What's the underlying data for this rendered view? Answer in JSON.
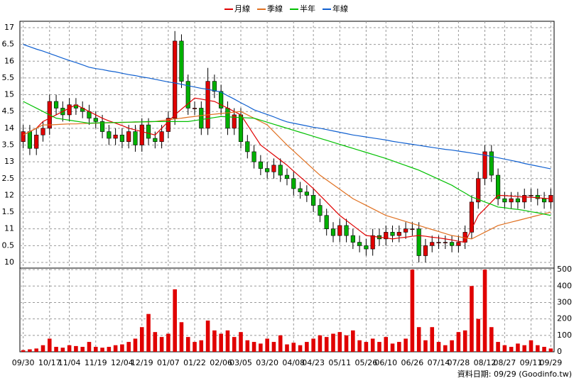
{
  "chart_data": {
    "type": "candlestick",
    "categories": [
      "09/30",
      null,
      null,
      null,
      "10/17",
      null,
      null,
      "11/04",
      null,
      null,
      null,
      "11/19",
      null,
      null,
      null,
      "12/04",
      null,
      null,
      "12/19",
      null,
      null,
      null,
      "01/07",
      null,
      null,
      null,
      "01/22",
      null,
      null,
      null,
      "02/06",
      null,
      null,
      "03/05",
      null,
      null,
      null,
      "03/20",
      null,
      null,
      null,
      "04/08",
      null,
      null,
      "04/23",
      null,
      null,
      null,
      "05/11",
      null,
      null,
      null,
      "05/26",
      null,
      null,
      "06/10",
      null,
      null,
      null,
      "06/26",
      null,
      null,
      null,
      "07/14",
      null,
      null,
      "07/28",
      null,
      null,
      null,
      "08/12",
      null,
      null,
      "08/27",
      null,
      null,
      null,
      "09/11",
      null,
      null,
      "09/29"
    ],
    "open": [
      13.6,
      13.9,
      13.4,
      13.8,
      14.0,
      14.8,
      14.6,
      14.4,
      14.7,
      14.6,
      14.5,
      14.3,
      14.2,
      13.9,
      13.7,
      13.8,
      13.6,
      13.9,
      13.5,
      14.1,
      13.7,
      13.6,
      13.9,
      14.3,
      16.6,
      15.4,
      14.6,
      14.6,
      14.0,
      15.4,
      15.1,
      14.6,
      14.0,
      14.4,
      13.6,
      13.3,
      13.0,
      12.8,
      12.7,
      12.9,
      12.6,
      12.5,
      12.2,
      12.1,
      12.0,
      11.7,
      11.4,
      11.0,
      10.8,
      11.1,
      10.8,
      10.6,
      10.5,
      10.4,
      10.8,
      10.7,
      10.9,
      10.8,
      10.9,
      11.0,
      11.0,
      10.2,
      10.5,
      10.6,
      10.6,
      10.6,
      10.5,
      10.6,
      10.9,
      11.8,
      12.5,
      13.3,
      12.6,
      11.9,
      11.8,
      11.9,
      11.8,
      12.0,
      12.0,
      11.9,
      11.8
    ],
    "high": [
      14.1,
      14.1,
      14.0,
      14.2,
      15.0,
      15.0,
      14.8,
      14.9,
      14.9,
      14.8,
      14.7,
      14.5,
      14.4,
      14.1,
      14.0,
      14.0,
      14.1,
      14.1,
      14.3,
      14.3,
      13.9,
      14.1,
      14.5,
      16.9,
      16.8,
      15.6,
      14.8,
      14.8,
      15.8,
      15.6,
      15.3,
      14.8,
      14.6,
      14.6,
      13.8,
      13.5,
      13.2,
      13.0,
      13.1,
      13.1,
      12.8,
      12.7,
      12.4,
      12.3,
      12.2,
      11.9,
      11.6,
      11.2,
      11.3,
      11.3,
      11.0,
      10.8,
      10.7,
      11.0,
      11.0,
      11.1,
      11.1,
      11.1,
      11.2,
      11.2,
      11.2,
      10.7,
      10.8,
      10.8,
      10.8,
      10.8,
      10.8,
      11.1,
      12.0,
      12.7,
      13.5,
      13.5,
      12.8,
      12.1,
      12.1,
      12.1,
      12.2,
      12.2,
      12.2,
      12.1,
      12.2
    ],
    "low": [
      13.4,
      13.2,
      13.2,
      13.6,
      13.8,
      14.4,
      14.2,
      14.2,
      14.4,
      14.3,
      14.1,
      14.0,
      13.7,
      13.5,
      13.5,
      13.4,
      13.4,
      13.3,
      13.3,
      13.5,
      13.4,
      13.4,
      13.7,
      14.1,
      15.2,
      14.4,
      14.4,
      13.8,
      13.8,
      14.9,
      14.4,
      13.8,
      13.8,
      13.4,
      13.1,
      12.8,
      12.6,
      12.5,
      12.5,
      12.4,
      12.3,
      12.0,
      11.9,
      11.8,
      11.5,
      11.2,
      10.8,
      10.6,
      10.6,
      10.6,
      10.4,
      10.3,
      10.2,
      10.2,
      10.5,
      10.5,
      10.6,
      10.6,
      10.7,
      10.8,
      10.0,
      10.0,
      10.3,
      10.4,
      10.4,
      10.3,
      10.3,
      10.4,
      10.7,
      11.6,
      12.3,
      12.4,
      11.7,
      11.6,
      11.6,
      11.6,
      11.6,
      11.8,
      11.7,
      11.6,
      11.6
    ],
    "close": [
      13.9,
      13.4,
      13.8,
      14.0,
      14.8,
      14.6,
      14.4,
      14.7,
      14.6,
      14.5,
      14.3,
      14.2,
      13.9,
      13.7,
      13.8,
      13.6,
      13.9,
      13.5,
      14.1,
      13.7,
      13.6,
      13.9,
      14.3,
      16.6,
      15.4,
      14.6,
      14.6,
      14.0,
      15.4,
      15.1,
      14.6,
      14.0,
      14.4,
      13.6,
      13.3,
      13.0,
      12.8,
      12.7,
      12.9,
      12.6,
      12.5,
      12.2,
      12.1,
      12.0,
      11.7,
      11.4,
      11.0,
      10.8,
      11.1,
      10.8,
      10.6,
      10.5,
      10.4,
      10.8,
      10.7,
      10.9,
      10.8,
      10.9,
      11.0,
      11.0,
      10.2,
      10.5,
      10.6,
      10.6,
      10.6,
      10.5,
      10.6,
      10.9,
      11.8,
      12.5,
      13.3,
      12.6,
      11.9,
      11.8,
      11.9,
      11.8,
      12.0,
      12.0,
      11.9,
      11.8,
      12.0
    ],
    "up_color": "#e00000",
    "down_color": "#00b000",
    "series": [
      {
        "name": "月線",
        "color": "#e00000",
        "values": [
          13.8,
          13.9,
          14.0,
          14.2,
          14.3,
          14.4,
          14.5,
          14.6,
          14.7,
          14.6,
          14.5,
          14.4,
          14.3,
          14.22,
          14.15,
          14.08,
          14.0,
          13.95,
          13.9,
          13.85,
          13.8,
          14.0,
          14.2,
          14.4,
          14.57,
          14.73,
          14.9,
          14.87,
          14.83,
          14.8,
          14.7,
          14.6,
          14.5,
          14.4,
          14.1,
          13.8,
          13.5,
          13.35,
          13.2,
          13.05,
          12.9,
          12.72,
          12.55,
          12.38,
          12.2,
          12.0,
          11.8,
          11.6,
          11.4,
          11.25,
          11.1,
          10.95,
          10.8,
          10.78,
          10.75,
          10.73,
          10.7,
          10.73,
          10.75,
          10.78,
          10.8,
          10.78,
          10.75,
          10.73,
          10.7,
          10.67,
          10.63,
          10.6,
          11.0,
          11.4,
          11.6,
          11.8,
          12.0,
          11.99,
          11.98,
          11.96,
          11.95,
          11.94,
          11.93,
          11.91,
          11.9
        ]
      },
      {
        "name": "季線",
        "color": "#e07020",
        "values": [
          13.8,
          13.9,
          14.0,
          14.1,
          14.1,
          14.11,
          14.12,
          14.13,
          14.13,
          14.14,
          14.15,
          14.15,
          14.16,
          14.16,
          14.17,
          14.17,
          14.18,
          14.18,
          14.19,
          14.19,
          14.2,
          14.23,
          14.25,
          14.28,
          14.3,
          14.33,
          14.35,
          14.38,
          14.4,
          14.42,
          14.44,
          14.46,
          14.48,
          14.5,
          14.4,
          14.3,
          14.2,
          14.1,
          13.9,
          13.7,
          13.5,
          13.32,
          13.14,
          12.96,
          12.78,
          12.6,
          12.46,
          12.32,
          12.18,
          12.04,
          11.9,
          11.8,
          11.7,
          11.6,
          11.5,
          11.4,
          11.34,
          11.28,
          11.22,
          11.16,
          11.1,
          11.04,
          10.98,
          10.92,
          10.86,
          10.8,
          10.77,
          10.73,
          10.7,
          10.8,
          10.9,
          11.0,
          11.1,
          11.15,
          11.2,
          11.25,
          11.3,
          11.35,
          11.4,
          11.45,
          11.5
        ]
      },
      {
        "name": "半年",
        "color": "#00c000",
        "values": [
          14.8,
          14.7,
          14.6,
          14.5,
          14.4,
          14.3,
          14.27,
          14.24,
          14.21,
          14.18,
          14.15,
          14.16,
          14.16,
          14.17,
          14.17,
          14.18,
          14.18,
          14.19,
          14.19,
          14.2,
          14.2,
          14.2,
          14.2,
          14.2,
          14.2,
          14.2,
          14.23,
          14.26,
          14.29,
          14.32,
          14.35,
          14.34,
          14.33,
          14.32,
          14.31,
          14.3,
          14.24,
          14.18,
          14.12,
          14.06,
          14.0,
          13.94,
          13.88,
          13.82,
          13.76,
          13.7,
          13.64,
          13.58,
          13.52,
          13.46,
          13.4,
          13.34,
          13.28,
          13.22,
          13.16,
          13.1,
          13.03,
          12.96,
          12.89,
          12.82,
          12.75,
          12.66,
          12.57,
          12.48,
          12.39,
          12.3,
          12.18,
          12.07,
          11.95,
          11.88,
          11.8,
          11.73,
          11.65,
          11.63,
          11.6,
          11.58,
          11.55,
          11.51,
          11.48,
          11.44,
          11.4
        ]
      },
      {
        "name": "年線",
        "color": "#1060d0",
        "values": [
          16.5,
          16.43,
          16.36,
          16.3,
          16.23,
          16.16,
          16.09,
          16.02,
          15.96,
          15.89,
          15.82,
          15.78,
          15.75,
          15.71,
          15.68,
          15.64,
          15.6,
          15.57,
          15.53,
          15.5,
          15.46,
          15.42,
          15.38,
          15.35,
          15.31,
          15.27,
          15.23,
          15.19,
          15.16,
          15.12,
          15.08,
          14.97,
          14.87,
          14.76,
          14.66,
          14.55,
          14.48,
          14.41,
          14.34,
          14.26,
          14.19,
          14.15,
          14.11,
          14.07,
          14.03,
          14.0,
          13.96,
          13.92,
          13.88,
          13.84,
          13.8,
          13.77,
          13.74,
          13.71,
          13.68,
          13.65,
          13.61,
          13.58,
          13.55,
          13.52,
          13.49,
          13.46,
          13.43,
          13.4,
          13.37,
          13.35,
          13.32,
          13.29,
          13.26,
          13.23,
          13.2,
          13.16,
          13.12,
          13.08,
          13.04,
          13.0,
          12.95,
          12.91,
          12.87,
          12.83,
          12.79
        ]
      }
    ],
    "ylim": [
      9.83,
      17.19
    ],
    "yticks": [
      10,
      {
        "value": 10.5,
        "label": "0.5"
      },
      11,
      {
        "value": 11.5,
        "label": "1.5"
      },
      12,
      {
        "value": 12.5,
        "label": "2.5"
      },
      13,
      {
        "value": 13.5,
        "label": "3.5"
      },
      14,
      {
        "value": 14.5,
        "label": "4.5"
      },
      15,
      {
        "value": 15.5,
        "label": "5.5"
      },
      16,
      {
        "value": 16.5,
        "label": "6.5"
      },
      17
    ],
    "volume": {
      "color": "#e00000",
      "values": [
        10,
        15,
        20,
        40,
        80,
        30,
        25,
        40,
        35,
        30,
        60,
        30,
        25,
        30,
        40,
        45,
        60,
        80,
        150,
        230,
        120,
        90,
        110,
        380,
        180,
        90,
        60,
        70,
        190,
        130,
        110,
        130,
        90,
        120,
        70,
        60,
        50,
        80,
        60,
        100,
        45,
        55,
        40,
        60,
        80,
        100,
        90,
        110,
        120,
        100,
        130,
        70,
        60,
        80,
        60,
        90,
        50,
        60,
        80,
        500,
        150,
        70,
        150,
        60,
        40,
        70,
        120,
        130,
        400,
        200,
        500,
        150,
        60,
        40,
        30,
        50,
        40,
        70,
        40,
        30,
        20
      ],
      "ylim": [
        0,
        509
      ],
      "yticks": [
        0,
        100,
        200,
        300,
        400,
        500
      ]
    },
    "grid": true,
    "footnote": "資料日期: 09/29 (Goodinfo.tw)"
  }
}
